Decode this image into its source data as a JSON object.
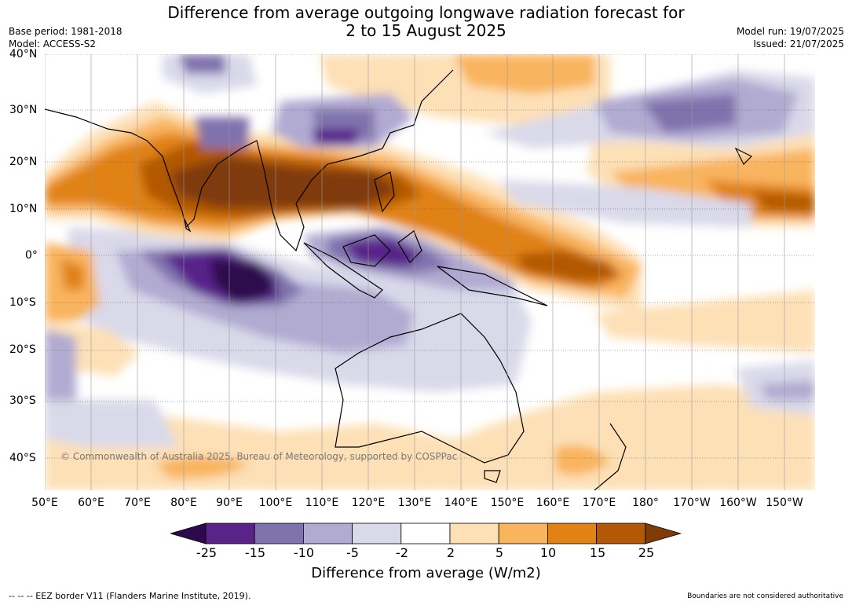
{
  "title": "Difference from average outgoing longwave radiation forecast for\n2 to 15 August 2025",
  "title_lines": [
    "Difference from average outgoing longwave radiation forecast for",
    "2 to 15 August 2025"
  ],
  "meta_left": [
    "Base period: 1981-2018",
    "Model: ACCESS-S2"
  ],
  "meta_right": [
    "Model run: 19/07/2025",
    "Issued: 21/07/2025"
  ],
  "latitude_labels": [
    "40°N",
    "30°N",
    "20°N",
    "10°N",
    "0°",
    "10°S",
    "20°S",
    "30°S",
    "40°S"
  ],
  "longitude_labels": [
    "50°E",
    "60°E",
    "70°E",
    "80°E",
    "90°E",
    "100°E",
    "110°E",
    "120°E",
    "130°E",
    "140°E",
    "150°E",
    "160°E",
    "170°E",
    "180°",
    "170°W",
    "160°W",
    "150°W"
  ],
  "copyright": "© Commonwealth of Australia 2025, Bureau of Meteorology, supported by COSPPac",
  "colorbar": {
    "label": "Difference from average (W/m2)",
    "ticks": [
      "-25",
      "-15",
      "-10",
      "-5",
      "-2",
      "2",
      "5",
      "10",
      "15",
      "25"
    ],
    "colors": [
      "#2d0a4e",
      "#59238a",
      "#8072ad",
      "#b1aad1",
      "#d9d9ea",
      "#ffffff",
      "#fde0b6",
      "#f9b45e",
      "#e08214",
      "#b35806",
      "#7f3b08"
    ]
  },
  "footer_left": "--  --  -- EEZ border V11 (Flanders Marine Institute, 2019).",
  "footer_right": "Boundaries are not considered authoritative"
}
